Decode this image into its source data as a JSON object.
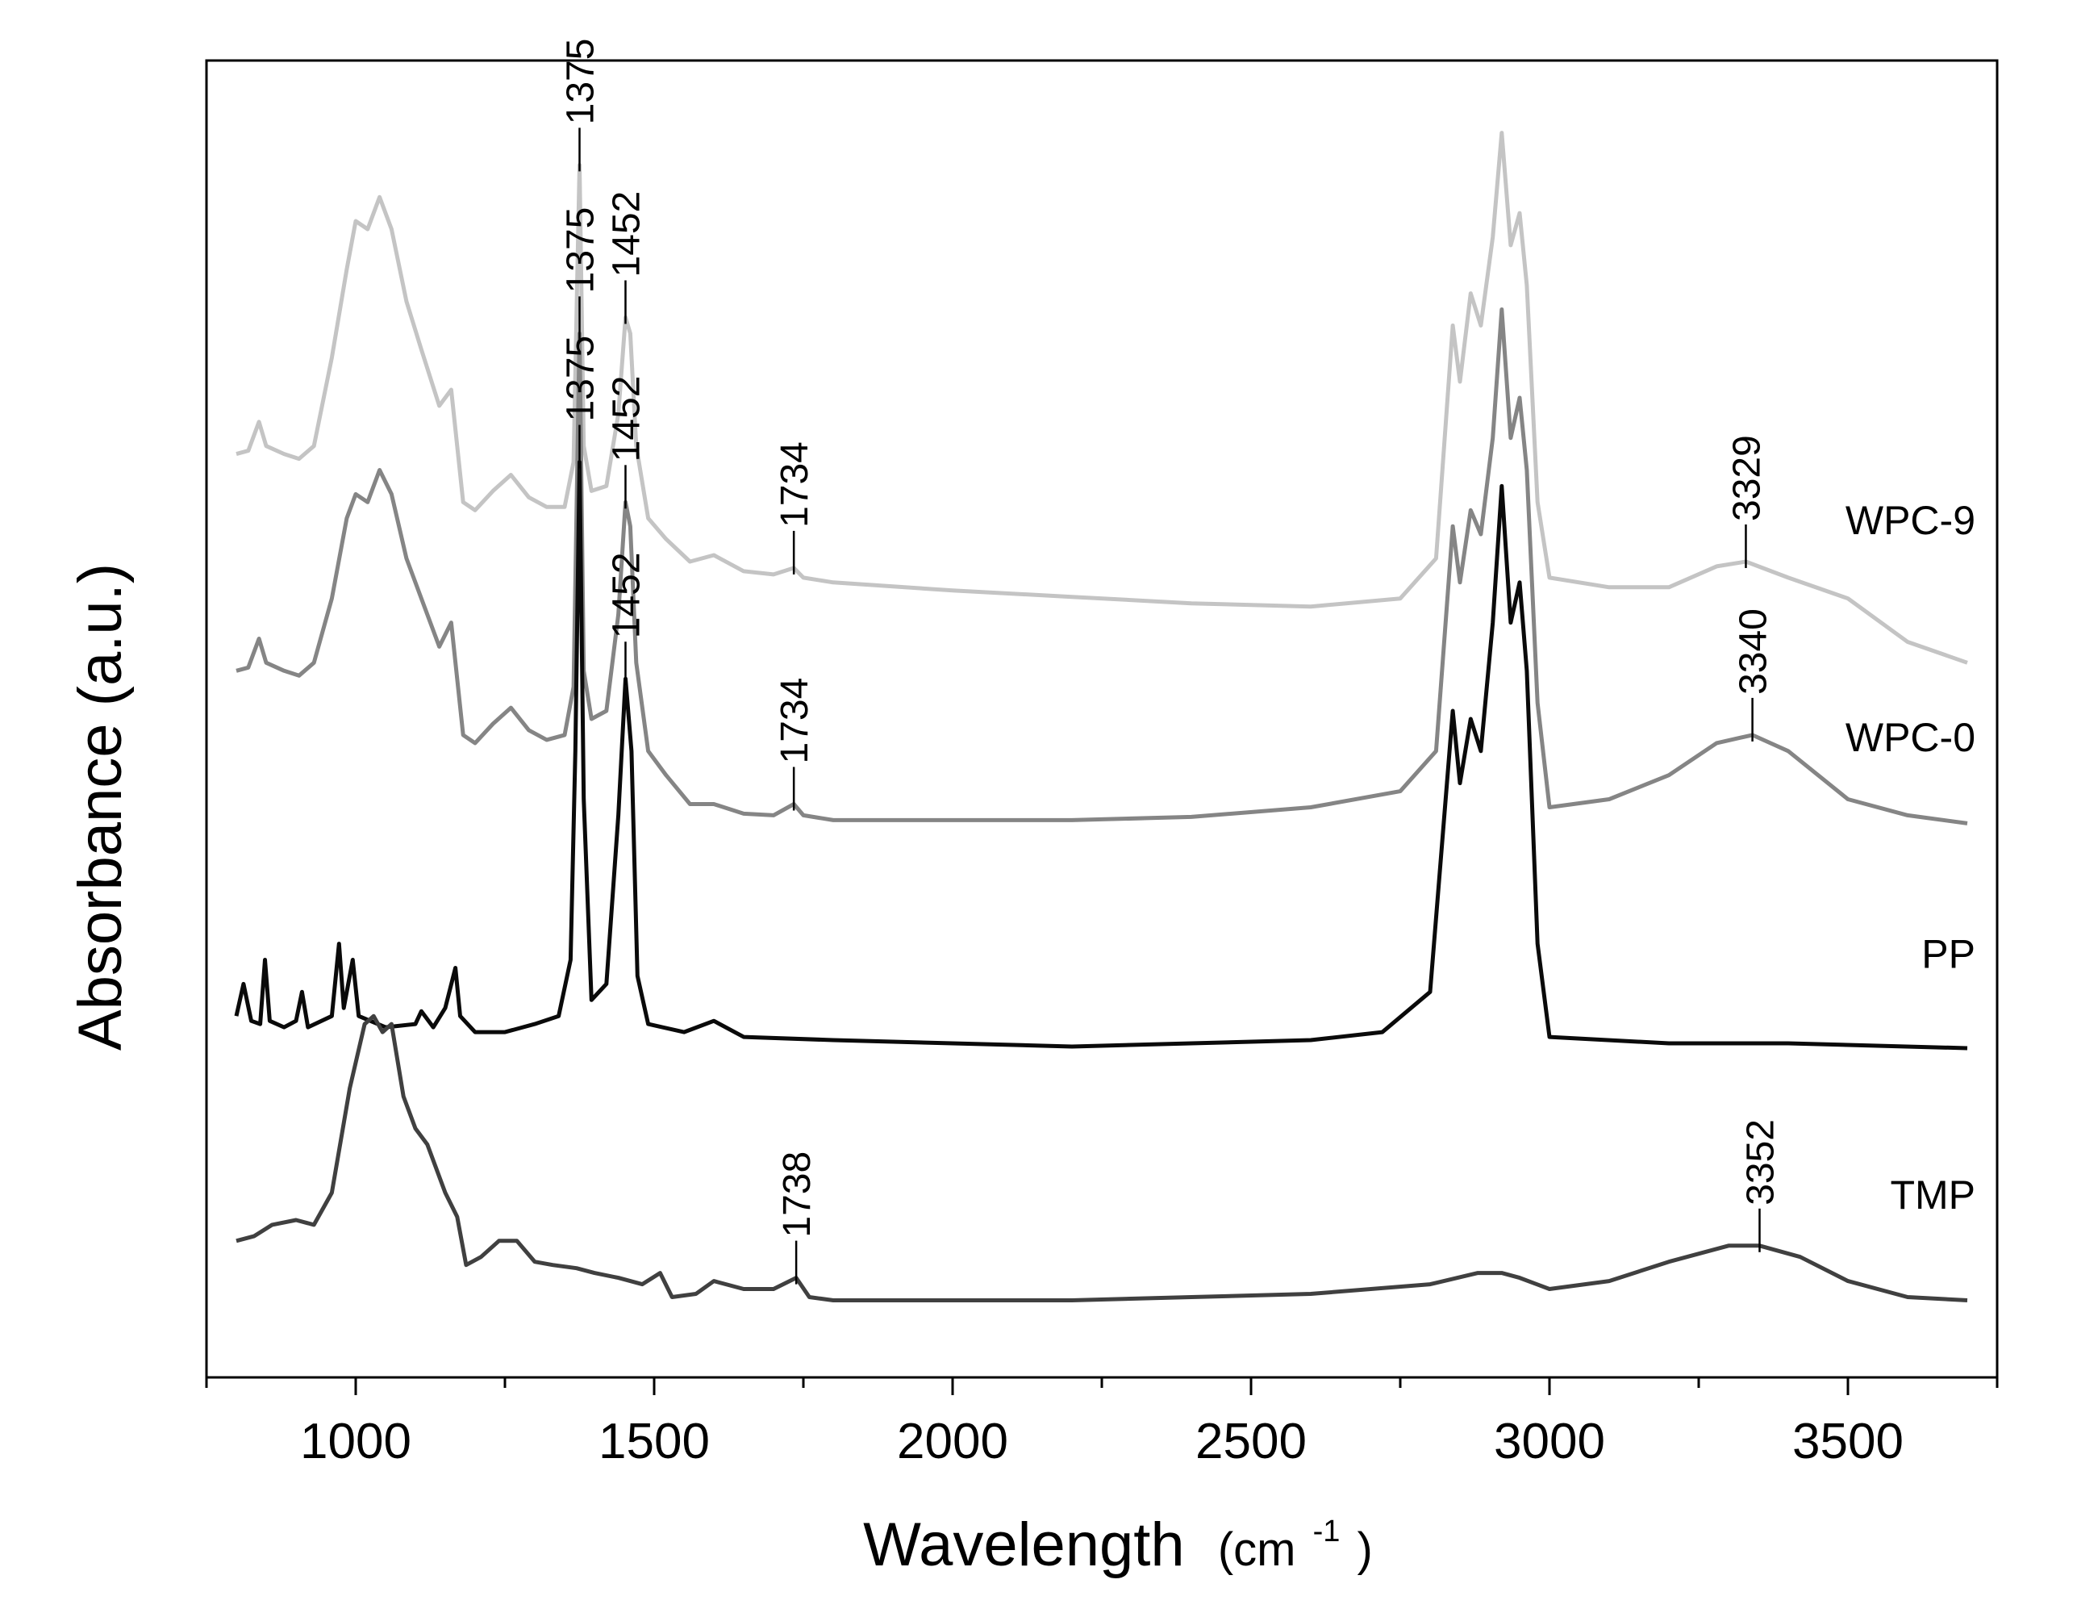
{
  "chart_data": {
    "type": "line",
    "title": "",
    "xlabel": "Wavelength",
    "xlabel_unit_base": "(cm",
    "xlabel_unit_sup": "-1",
    "xlabel_unit_close": ")",
    "ylabel": "Absorbance (a.u.)",
    "xlim": [
      750,
      3750
    ],
    "x_ticks": [
      1000,
      1500,
      2000,
      2500,
      3000,
      3500
    ],
    "x_tick_labels": [
      "1000",
      "1500",
      "2000",
      "2500",
      "3000",
      "3500"
    ],
    "x_minor_step": 250,
    "y_ticks_shown": false,
    "series": [
      {
        "name": "WPC-9",
        "color": "#c4c4c4",
        "offset": 4.2,
        "points": [
          [
            800,
            0.95
          ],
          [
            820,
            0.97
          ],
          [
            838,
            1.15
          ],
          [
            850,
            1.0
          ],
          [
            880,
            0.95
          ],
          [
            905,
            0.92
          ],
          [
            930,
            1.0
          ],
          [
            960,
            1.55
          ],
          [
            985,
            2.1
          ],
          [
            1000,
            2.4
          ],
          [
            1020,
            2.35
          ],
          [
            1040,
            2.55
          ],
          [
            1060,
            2.35
          ],
          [
            1085,
            1.9
          ],
          [
            1110,
            1.6
          ],
          [
            1140,
            1.25
          ],
          [
            1160,
            1.35
          ],
          [
            1180,
            0.65
          ],
          [
            1200,
            0.6
          ],
          [
            1230,
            0.72
          ],
          [
            1260,
            0.82
          ],
          [
            1290,
            0.68
          ],
          [
            1320,
            0.62
          ],
          [
            1350,
            0.62
          ],
          [
            1365,
            0.9
          ],
          [
            1375,
            2.75
          ],
          [
            1382,
            1.0
          ],
          [
            1395,
            0.72
          ],
          [
            1420,
            0.75
          ],
          [
            1440,
            1.2
          ],
          [
            1452,
            1.8
          ],
          [
            1460,
            1.7
          ],
          [
            1470,
            1.0
          ],
          [
            1490,
            0.55
          ],
          [
            1520,
            0.42
          ],
          [
            1560,
            0.28
          ],
          [
            1600,
            0.32
          ],
          [
            1650,
            0.22
          ],
          [
            1700,
            0.2
          ],
          [
            1734,
            0.24
          ],
          [
            1750,
            0.18
          ],
          [
            1800,
            0.15
          ],
          [
            2000,
            0.1
          ],
          [
            2200,
            0.06
          ],
          [
            2400,
            0.02
          ],
          [
            2600,
            0.0
          ],
          [
            2750,
            0.05
          ],
          [
            2810,
            0.3
          ],
          [
            2838,
            1.75
          ],
          [
            2850,
            1.4
          ],
          [
            2868,
            1.95
          ],
          [
            2885,
            1.75
          ],
          [
            2905,
            2.3
          ],
          [
            2920,
            2.95
          ],
          [
            2935,
            2.25
          ],
          [
            2950,
            2.45
          ],
          [
            2962,
            2.0
          ],
          [
            2980,
            0.65
          ],
          [
            3000,
            0.18
          ],
          [
            3100,
            0.12
          ],
          [
            3200,
            0.12
          ],
          [
            3280,
            0.25
          ],
          [
            3329,
            0.28
          ],
          [
            3400,
            0.18
          ],
          [
            3500,
            0.05
          ],
          [
            3600,
            -0.22
          ],
          [
            3700,
            -0.35
          ]
        ]
      },
      {
        "name": "WPC-0",
        "color": "#858585",
        "offset": 2.85,
        "points": [
          [
            800,
            0.95
          ],
          [
            820,
            0.97
          ],
          [
            838,
            1.15
          ],
          [
            850,
            1.0
          ],
          [
            880,
            0.95
          ],
          [
            905,
            0.92
          ],
          [
            930,
            1.0
          ],
          [
            960,
            1.4
          ],
          [
            985,
            1.9
          ],
          [
            1000,
            2.05
          ],
          [
            1020,
            2.0
          ],
          [
            1040,
            2.2
          ],
          [
            1060,
            2.05
          ],
          [
            1085,
            1.65
          ],
          [
            1110,
            1.4
          ],
          [
            1140,
            1.1
          ],
          [
            1160,
            1.25
          ],
          [
            1180,
            0.55
          ],
          [
            1200,
            0.5
          ],
          [
            1230,
            0.62
          ],
          [
            1260,
            0.72
          ],
          [
            1290,
            0.58
          ],
          [
            1320,
            0.52
          ],
          [
            1350,
            0.55
          ],
          [
            1365,
            0.85
          ],
          [
            1375,
            3.05
          ],
          [
            1382,
            0.95
          ],
          [
            1395,
            0.65
          ],
          [
            1420,
            0.7
          ],
          [
            1440,
            1.3
          ],
          [
            1452,
            2.0
          ],
          [
            1460,
            1.85
          ],
          [
            1470,
            1.0
          ],
          [
            1490,
            0.45
          ],
          [
            1520,
            0.3
          ],
          [
            1560,
            0.12
          ],
          [
            1600,
            0.12
          ],
          [
            1650,
            0.06
          ],
          [
            1700,
            0.05
          ],
          [
            1734,
            0.12
          ],
          [
            1750,
            0.05
          ],
          [
            1800,
            0.02
          ],
          [
            2000,
            0.02
          ],
          [
            2200,
            0.02
          ],
          [
            2400,
            0.04
          ],
          [
            2600,
            0.1
          ],
          [
            2750,
            0.2
          ],
          [
            2810,
            0.45
          ],
          [
            2838,
            1.85
          ],
          [
            2850,
            1.5
          ],
          [
            2868,
            1.95
          ],
          [
            2885,
            1.8
          ],
          [
            2905,
            2.4
          ],
          [
            2920,
            3.2
          ],
          [
            2935,
            2.4
          ],
          [
            2950,
            2.65
          ],
          [
            2962,
            2.2
          ],
          [
            2980,
            0.75
          ],
          [
            3000,
            0.1
          ],
          [
            3100,
            0.15
          ],
          [
            3200,
            0.3
          ],
          [
            3280,
            0.5
          ],
          [
            3340,
            0.55
          ],
          [
            3400,
            0.45
          ],
          [
            3500,
            0.15
          ],
          [
            3600,
            0.05
          ],
          [
            3700,
            0.0
          ]
        ]
      },
      {
        "name": "PP",
        "color": "#0a0a0a",
        "offset": 1.5,
        "points": [
          [
            800,
            0.15
          ],
          [
            812,
            0.35
          ],
          [
            825,
            0.12
          ],
          [
            840,
            0.1
          ],
          [
            848,
            0.5
          ],
          [
            856,
            0.12
          ],
          [
            880,
            0.08
          ],
          [
            900,
            0.12
          ],
          [
            910,
            0.3
          ],
          [
            920,
            0.08
          ],
          [
            960,
            0.15
          ],
          [
            972,
            0.6
          ],
          [
            980,
            0.2
          ],
          [
            995,
            0.5
          ],
          [
            1005,
            0.15
          ],
          [
            1050,
            0.08
          ],
          [
            1100,
            0.1
          ],
          [
            1110,
            0.18
          ],
          [
            1130,
            0.08
          ],
          [
            1150,
            0.2
          ],
          [
            1167,
            0.45
          ],
          [
            1175,
            0.15
          ],
          [
            1200,
            0.05
          ],
          [
            1250,
            0.05
          ],
          [
            1300,
            0.1
          ],
          [
            1340,
            0.15
          ],
          [
            1360,
            0.5
          ],
          [
            1368,
            1.8
          ],
          [
            1375,
            3.6
          ],
          [
            1382,
            1.5
          ],
          [
            1395,
            0.25
          ],
          [
            1420,
            0.35
          ],
          [
            1440,
            1.4
          ],
          [
            1452,
            2.25
          ],
          [
            1462,
            1.8
          ],
          [
            1472,
            0.4
          ],
          [
            1490,
            0.1
          ],
          [
            1550,
            0.05
          ],
          [
            1600,
            0.12
          ],
          [
            1650,
            0.02
          ],
          [
            1800,
            0.0
          ],
          [
            2000,
            -0.02
          ],
          [
            2200,
            -0.04
          ],
          [
            2400,
            -0.02
          ],
          [
            2600,
            0.0
          ],
          [
            2720,
            0.05
          ],
          [
            2800,
            0.3
          ],
          [
            2838,
            2.05
          ],
          [
            2850,
            1.6
          ],
          [
            2868,
            2.0
          ],
          [
            2885,
            1.8
          ],
          [
            2905,
            2.6
          ],
          [
            2920,
            3.45
          ],
          [
            2935,
            2.6
          ],
          [
            2950,
            2.85
          ],
          [
            2962,
            2.3
          ],
          [
            2980,
            0.6
          ],
          [
            3000,
            0.02
          ],
          [
            3200,
            -0.02
          ],
          [
            3400,
            -0.02
          ],
          [
            3700,
            -0.05
          ]
        ]
      },
      {
        "name": "TMP",
        "color": "#404040",
        "offset": 0.0,
        "points": [
          [
            800,
            0.25
          ],
          [
            830,
            0.28
          ],
          [
            860,
            0.35
          ],
          [
            900,
            0.38
          ],
          [
            930,
            0.35
          ],
          [
            960,
            0.55
          ],
          [
            990,
            1.2
          ],
          [
            1015,
            1.6
          ],
          [
            1030,
            1.65
          ],
          [
            1045,
            1.55
          ],
          [
            1060,
            1.6
          ],
          [
            1080,
            1.15
          ],
          [
            1100,
            0.95
          ],
          [
            1120,
            0.85
          ],
          [
            1150,
            0.55
          ],
          [
            1170,
            0.4
          ],
          [
            1185,
            0.1
          ],
          [
            1210,
            0.15
          ],
          [
            1240,
            0.25
          ],
          [
            1270,
            0.25
          ],
          [
            1300,
            0.12
          ],
          [
            1330,
            0.1
          ],
          [
            1370,
            0.08
          ],
          [
            1400,
            0.05
          ],
          [
            1440,
            0.02
          ],
          [
            1480,
            -0.02
          ],
          [
            1510,
            0.05
          ],
          [
            1530,
            -0.1
          ],
          [
            1570,
            -0.08
          ],
          [
            1600,
            0.0
          ],
          [
            1650,
            -0.05
          ],
          [
            1700,
            -0.05
          ],
          [
            1738,
            0.02
          ],
          [
            1760,
            -0.1
          ],
          [
            1800,
            -0.12
          ],
          [
            2000,
            -0.12
          ],
          [
            2200,
            -0.12
          ],
          [
            2400,
            -0.1
          ],
          [
            2600,
            -0.08
          ],
          [
            2800,
            -0.02
          ],
          [
            2880,
            0.05
          ],
          [
            2920,
            0.05
          ],
          [
            2950,
            0.02
          ],
          [
            3000,
            -0.05
          ],
          [
            3100,
            0.0
          ],
          [
            3200,
            0.12
          ],
          [
            3300,
            0.22
          ],
          [
            3352,
            0.22
          ],
          [
            3420,
            0.15
          ],
          [
            3500,
            0.0
          ],
          [
            3600,
            -0.1
          ],
          [
            3700,
            -0.12
          ]
        ]
      }
    ],
    "peak_annotations": [
      {
        "series": "WPC-9",
        "label": "1375",
        "x": 1375
      },
      {
        "series": "WPC-9",
        "label": "1452",
        "x": 1452
      },
      {
        "series": "WPC-9",
        "label": "1734",
        "x": 1734
      },
      {
        "series": "WPC-9",
        "label": "3329",
        "x": 3329
      },
      {
        "series": "WPC-0",
        "label": "1375",
        "x": 1375
      },
      {
        "series": "WPC-0",
        "label": "1452",
        "x": 1452
      },
      {
        "series": "WPC-0",
        "label": "1734",
        "x": 1734
      },
      {
        "series": "WPC-0",
        "label": "3340",
        "x": 3340
      },
      {
        "series": "PP",
        "label": "1375",
        "x": 1375
      },
      {
        "series": "PP",
        "label": "1452",
        "x": 1452
      },
      {
        "series": "TMP",
        "label": "1738",
        "x": 1738
      },
      {
        "series": "TMP",
        "label": "3352",
        "x": 3352
      }
    ]
  }
}
